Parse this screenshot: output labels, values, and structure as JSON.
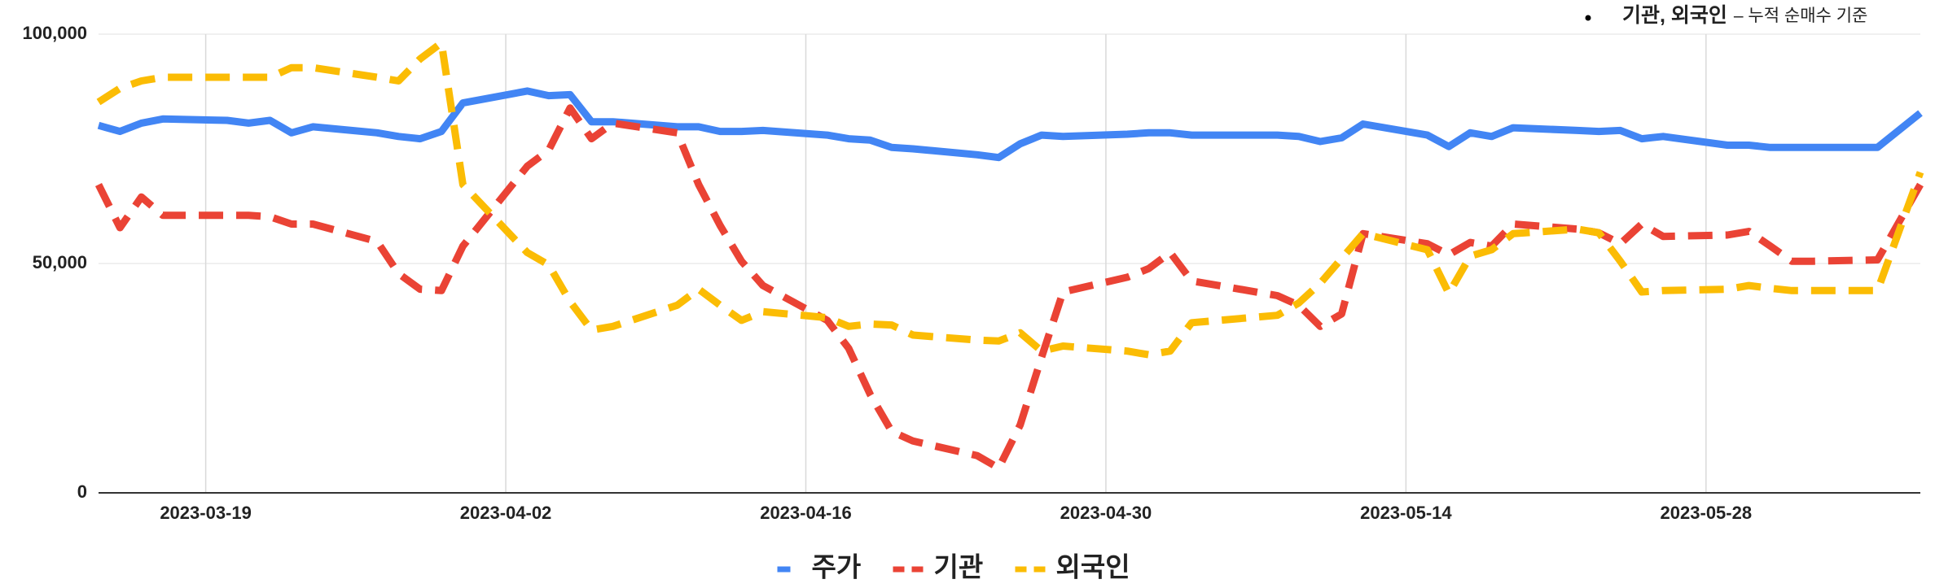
{
  "chart_data": {
    "type": "line",
    "annotation": [
      "기관, 외국인",
      "– 누적 순매수 기준"
    ],
    "x": [
      "2023-03-14",
      "2023-03-15",
      "2023-03-16",
      "2023-03-17",
      "2023-03-20",
      "2023-03-21",
      "2023-03-22",
      "2023-03-23",
      "2023-03-24",
      "2023-03-27",
      "2023-03-28",
      "2023-03-29",
      "2023-03-30",
      "2023-03-31",
      "2023-04-03",
      "2023-04-04",
      "2023-04-05",
      "2023-04-06",
      "2023-04-07",
      "2023-04-10",
      "2023-04-11",
      "2023-04-12",
      "2023-04-13",
      "2023-04-14",
      "2023-04-17",
      "2023-04-18",
      "2023-04-19",
      "2023-04-20",
      "2023-04-21",
      "2023-04-24",
      "2023-04-25",
      "2023-04-26",
      "2023-04-27",
      "2023-04-28",
      "2023-05-01",
      "2023-05-02",
      "2023-05-03",
      "2023-05-04",
      "2023-05-08",
      "2023-05-09",
      "2023-05-10",
      "2023-05-11",
      "2023-05-12",
      "2023-05-15",
      "2023-05-16",
      "2023-05-17",
      "2023-05-18",
      "2023-05-19",
      "2023-05-22",
      "2023-05-23",
      "2023-05-24",
      "2023-05-25",
      "2023-05-26",
      "2023-05-29",
      "2023-05-30",
      "2023-05-31",
      "2023-06-01",
      "2023-06-02",
      "2023-06-05",
      "2023-06-07"
    ],
    "series": [
      {
        "name": "주가",
        "color": "#4285f4",
        "dash": false,
        "values": [
          80100,
          78800,
          80600,
          81500,
          81200,
          80600,
          81200,
          78500,
          79800,
          78500,
          77700,
          77200,
          78800,
          85000,
          87600,
          86600,
          86800,
          80900,
          80900,
          79800,
          79800,
          78800,
          78800,
          79000,
          78000,
          77200,
          76900,
          75300,
          75000,
          73700,
          73100,
          76100,
          78000,
          77700,
          78200,
          78500,
          78500,
          78000,
          78000,
          77700,
          76600,
          77400,
          80400,
          78000,
          75500,
          78500,
          77700,
          79600,
          79000,
          78800,
          79000,
          77200,
          77700,
          75800,
          75800,
          75300,
          75300,
          75300,
          75300,
          82800
        ]
      },
      {
        "name": "기관",
        "color": "#ea4335",
        "dash": true,
        "values": [
          67200,
          57800,
          64500,
          60500,
          60500,
          60500,
          60200,
          58600,
          58600,
          54800,
          47800,
          44400,
          44100,
          53800,
          71200,
          74700,
          83900,
          77200,
          80600,
          78500,
          67200,
          58300,
          50500,
          45200,
          37600,
          31500,
          21500,
          13400,
          11300,
          8100,
          5400,
          14800,
          29600,
          43800,
          47000,
          48900,
          52400,
          46200,
          43000,
          40900,
          36300,
          39000,
          56500,
          54300,
          51900,
          54600,
          53800,
          58600,
          57500,
          56700,
          54300,
          58600,
          55900,
          56200,
          57000,
          53800,
          50500,
          50500,
          50800,
          67200
        ]
      },
      {
        "name": "외국인",
        "color": "#fbbc04",
        "dash": true,
        "values": [
          85200,
          88200,
          89800,
          90600,
          90600,
          90600,
          90600,
          92700,
          92700,
          90600,
          89800,
          94600,
          98100,
          67200,
          52400,
          49700,
          41700,
          35500,
          36300,
          40900,
          44400,
          40900,
          37600,
          39500,
          38200,
          36300,
          36800,
          36600,
          34400,
          33300,
          33100,
          34900,
          30900,
          32000,
          30900,
          30100,
          30900,
          37100,
          38700,
          41400,
          45700,
          51100,
          56500,
          53000,
          43500,
          51600,
          53000,
          56500,
          57500,
          56700,
          50500,
          43800,
          44100,
          44400,
          45200,
          44600,
          44100,
          44100,
          44100,
          69900
        ]
      }
    ],
    "xlim": [
      "2023-03-14",
      "2023-06-07"
    ],
    "xticks": [
      "2023-03-19",
      "2023-04-02",
      "2023-04-16",
      "2023-04-30",
      "2023-05-14",
      "2023-05-28"
    ],
    "ylim": [
      0,
      100000
    ],
    "yticks": [
      {
        "value": 0,
        "label": "0"
      },
      {
        "value": 50000,
        "label": "50,000"
      },
      {
        "value": 100000,
        "label": "100,000"
      }
    ],
    "grid": true
  }
}
